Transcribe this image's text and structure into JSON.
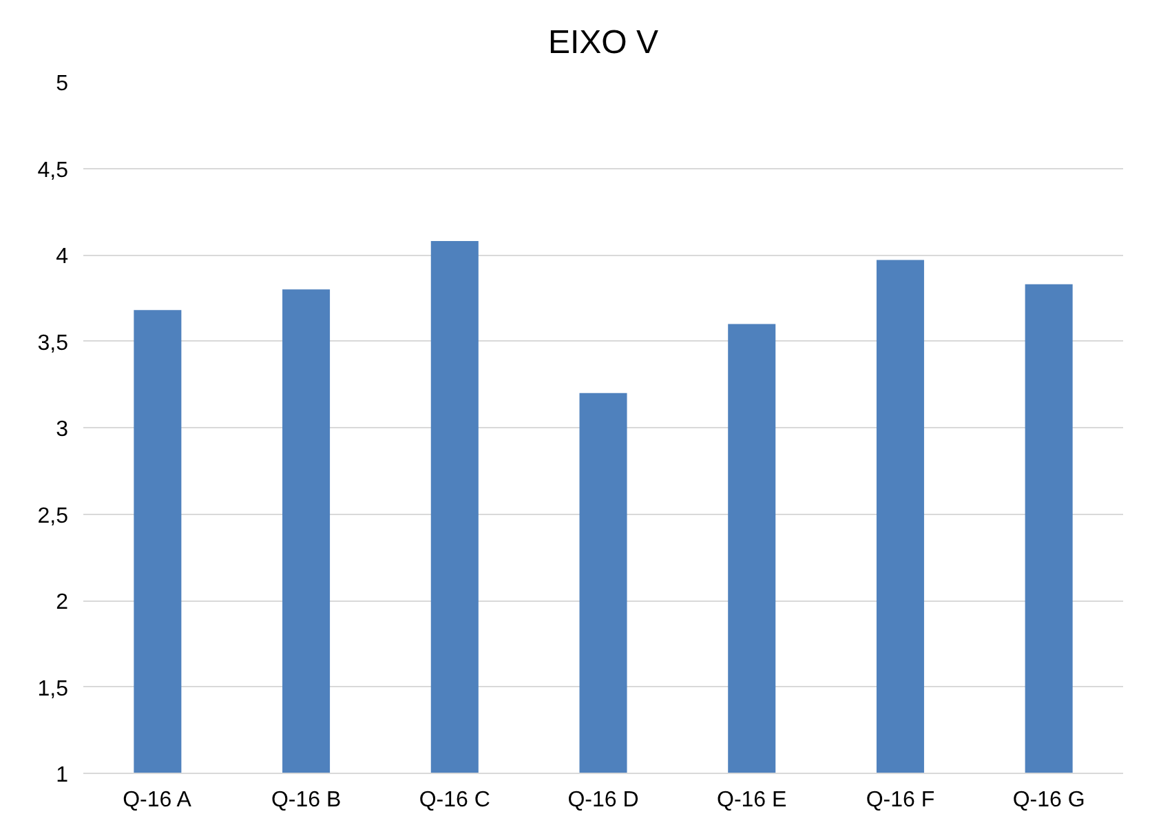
{
  "chart_data": {
    "type": "bar",
    "title": "EIXO V",
    "categories": [
      "Q-16 A",
      "Q-16 B",
      "Q-16 C",
      "Q-16 D",
      "Q-16 E",
      "Q-16 F",
      "Q-16 G"
    ],
    "values": [
      3.68,
      3.8,
      4.08,
      3.2,
      3.6,
      3.97,
      3.83
    ],
    "color": "#4f81bd",
    "ylim": [
      1,
      5
    ],
    "yticks": [
      {
        "value": 1,
        "label": "1"
      },
      {
        "value": 1.5,
        "label": "1,5"
      },
      {
        "value": 2,
        "label": "2"
      },
      {
        "value": 2.5,
        "label": "2,5"
      },
      {
        "value": 3,
        "label": "3"
      },
      {
        "value": 3.5,
        "label": "3,5"
      },
      {
        "value": 4,
        "label": "4"
      },
      {
        "value": 4.5,
        "label": "4,5"
      },
      {
        "value": 5,
        "label": "5"
      }
    ],
    "grid": "y"
  }
}
